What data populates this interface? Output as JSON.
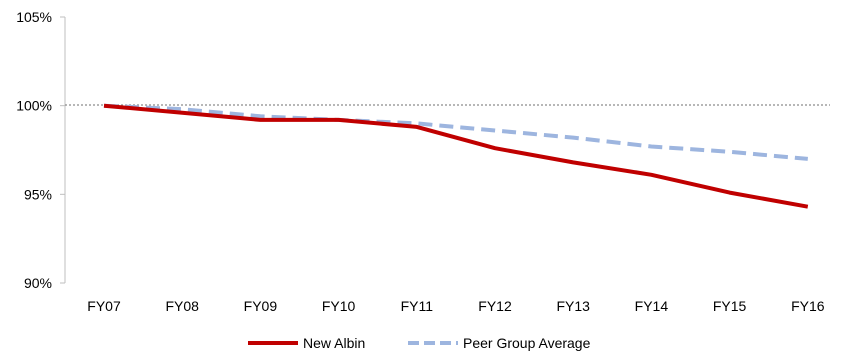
{
  "chart_data": {
    "type": "line",
    "title": "",
    "xlabel": "",
    "ylabel": "",
    "categories": [
      "FY07",
      "FY08",
      "FY09",
      "FY10",
      "FY11",
      "FY12",
      "FY13",
      "FY14",
      "FY15",
      "FY16"
    ],
    "ylim": [
      90,
      105
    ],
    "yticks": [
      90,
      95,
      100,
      105
    ],
    "ytick_labels": [
      "90%",
      "95%",
      "100%",
      "105%"
    ],
    "reference_line": 100,
    "grid": false,
    "legend_position": "bottom",
    "series": [
      {
        "name": "New Albin",
        "values": [
          100.0,
          99.6,
          99.2,
          99.2,
          98.8,
          97.6,
          96.8,
          96.1,
          95.1,
          94.3
        ],
        "color": "#C00000",
        "style": "solid"
      },
      {
        "name": "Peer Group Average",
        "values": [
          100.0,
          99.8,
          99.4,
          99.2,
          99.0,
          98.6,
          98.2,
          97.7,
          97.4,
          97.0
        ],
        "color": "#9DB5DF",
        "style": "dashed"
      }
    ]
  }
}
